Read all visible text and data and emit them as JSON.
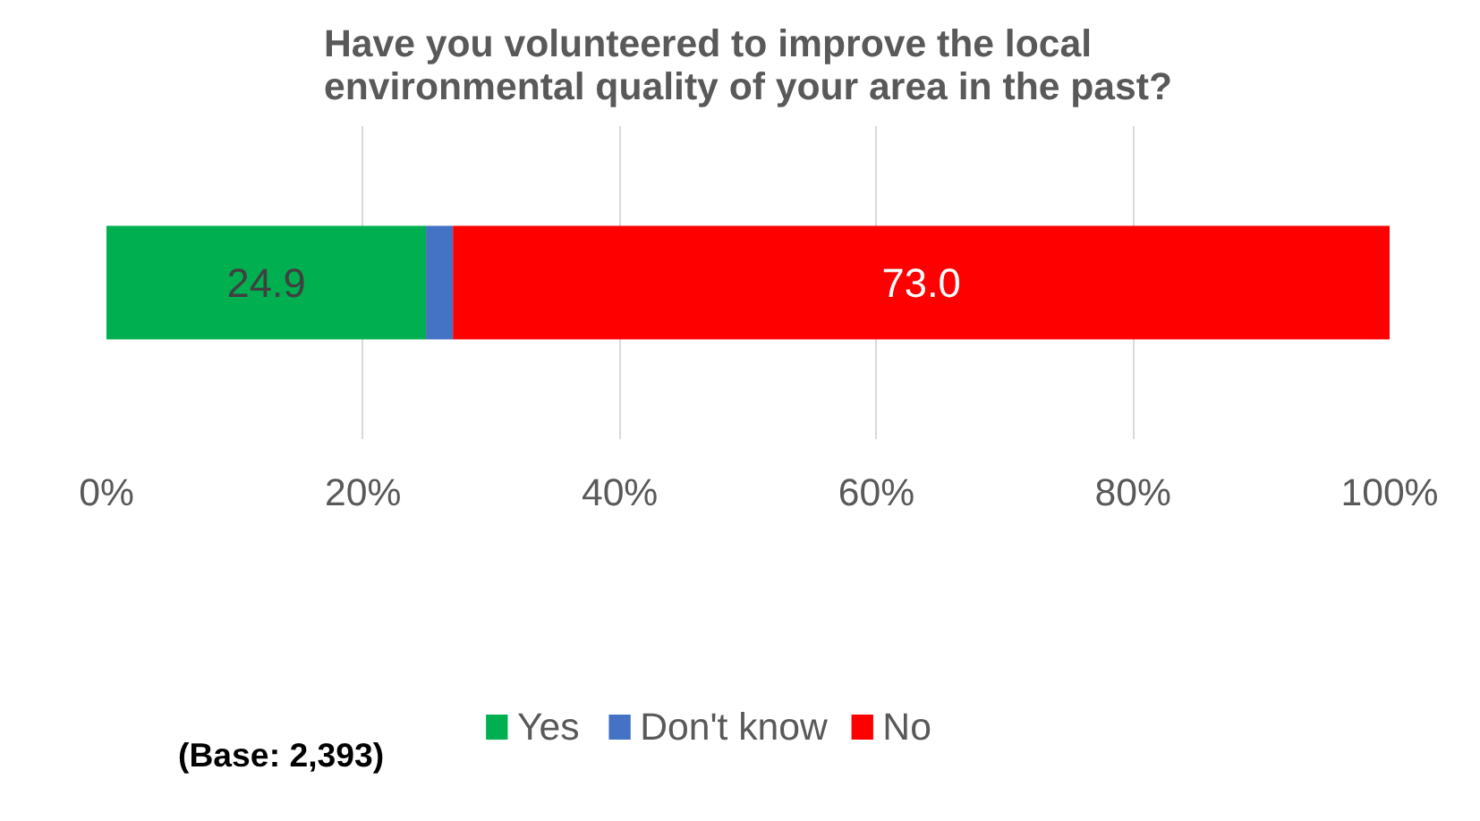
{
  "chart_data": {
    "type": "bar",
    "orientation": "horizontal",
    "stacked": true,
    "title": "Have you volunteered to improve the local environmental quality of your area in the past?",
    "categories": [
      null
    ],
    "series": [
      {
        "name": "Yes",
        "color": "#00b050",
        "values": [
          24.9
        ],
        "value_labels": [
          "24.9"
        ]
      },
      {
        "name": "Don't know",
        "color": "#4472c4",
        "values": [
          2.1
        ],
        "value_labels": [
          null
        ]
      },
      {
        "name": "No",
        "color": "#ff0000",
        "values": [
          73.0
        ],
        "value_labels": [
          "73.0"
        ]
      }
    ],
    "xlim": [
      0,
      100
    ],
    "xticks": [
      {
        "value": 0,
        "label": "0%"
      },
      {
        "value": 20,
        "label": "20%"
      },
      {
        "value": 40,
        "label": "40%"
      },
      {
        "value": 60,
        "label": "60%"
      },
      {
        "value": 80,
        "label": "80%"
      },
      {
        "value": 100,
        "label": "100%"
      }
    ],
    "grid": "x",
    "legend": "bottom",
    "annotations": [
      "(Base: 2,393)"
    ]
  }
}
